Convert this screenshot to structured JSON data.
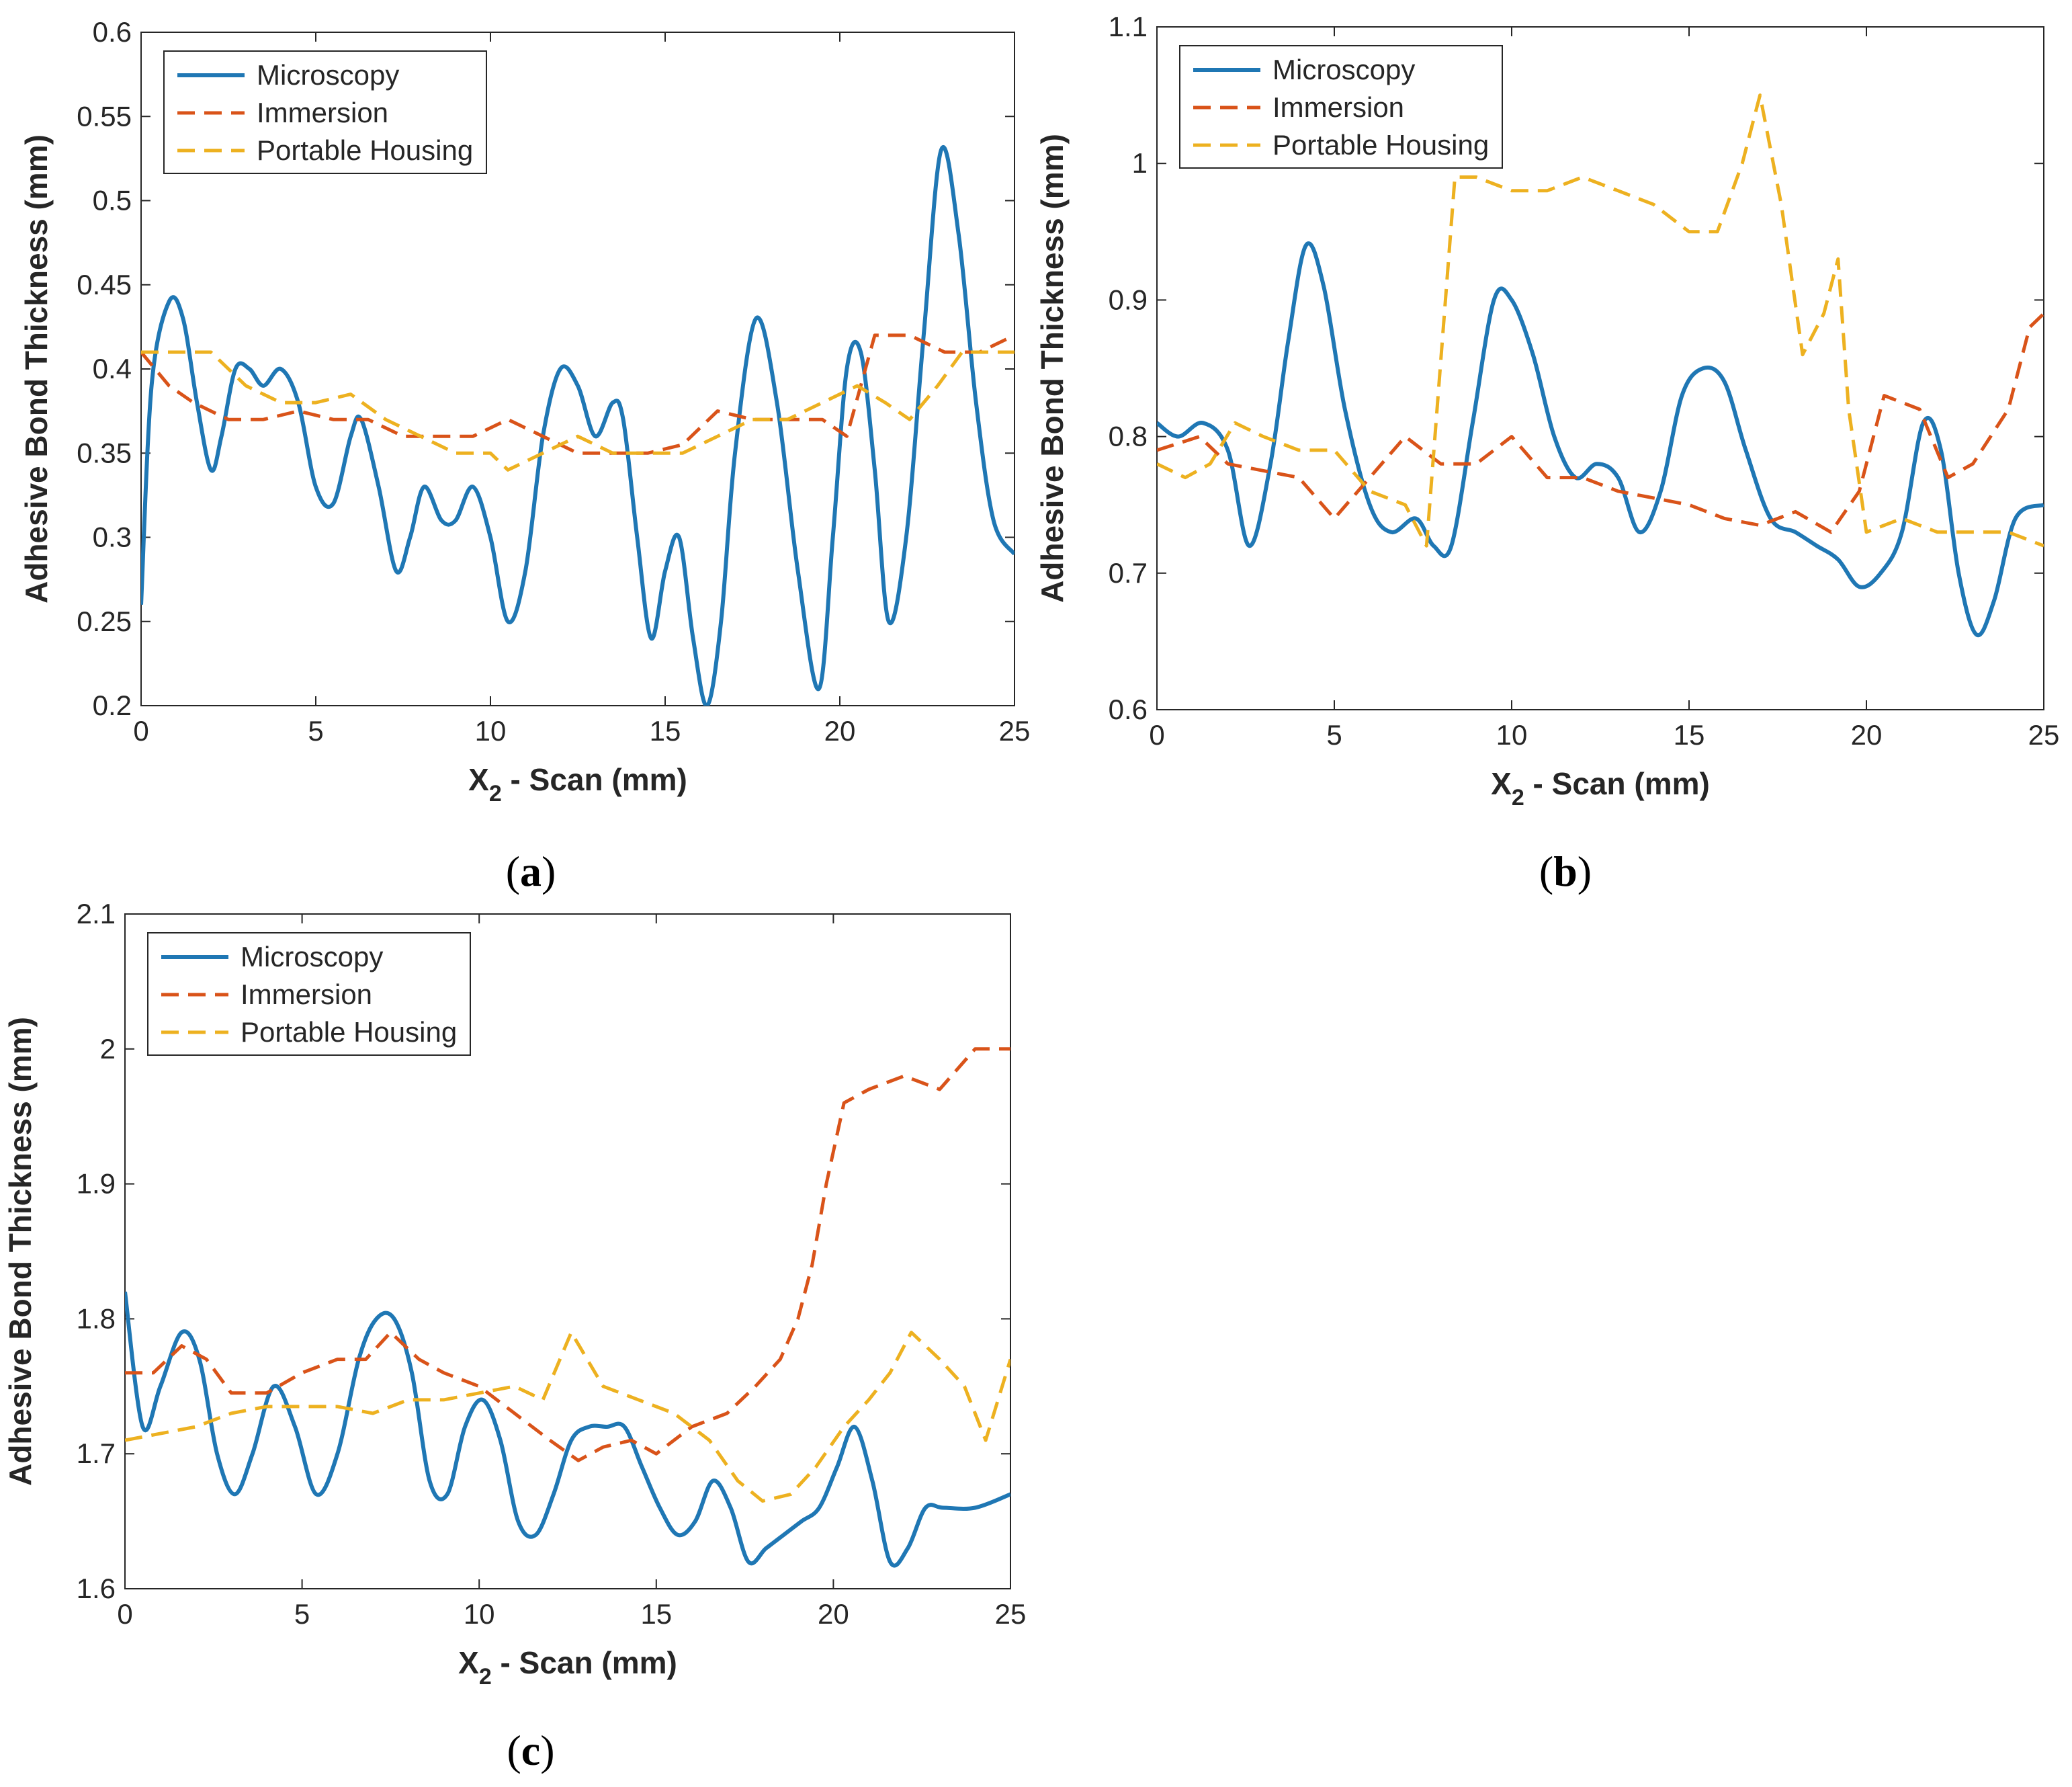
{
  "chart_data": [
    {
      "type": "line",
      "panel_label": "a",
      "xlabel": "X",
      "xlabel_sub": "2",
      "xlabel_rest": " - Scan (mm)",
      "ylabel": "Adhesive Bond Thickness (mm)",
      "xlim": [
        0,
        25
      ],
      "ylim": [
        0.2,
        0.6
      ],
      "xticks": [
        0,
        5,
        10,
        15,
        20,
        25
      ],
      "xtick_labels": [
        "0",
        "5",
        "10",
        "15",
        "20",
        "25"
      ],
      "yticks": [
        0.2,
        0.25,
        0.3,
        0.35,
        0.4,
        0.45,
        0.5,
        0.55,
        0.6
      ],
      "ytick_labels": [
        "0.2",
        "0.25",
        "0.3",
        "0.35",
        "0.4",
        "0.45",
        "0.5",
        "0.55",
        "0.6"
      ],
      "grid": false,
      "legend_position": "top-left",
      "series": [
        {
          "name": "Microscopy",
          "style": "solid",
          "color": "#1f77b4",
          "x": [
            0,
            0.3,
            0.8,
            1.2,
            1.6,
            2.0,
            2.3,
            2.7,
            3.1,
            3.5,
            4.0,
            4.5,
            5.0,
            5.5,
            6.0,
            6.3,
            6.8,
            7.3,
            7.7,
            8.1,
            8.6,
            9.0,
            9.5,
            10.0,
            10.5,
            11.0,
            11.5,
            12.0,
            12.5,
            13.0,
            13.5,
            13.8,
            14.2,
            14.6,
            15.0,
            15.4,
            15.8,
            16.2,
            16.6,
            17.0,
            17.6,
            18.2,
            18.8,
            19.4,
            19.8,
            20.2,
            20.6,
            21.0,
            21.4,
            21.9,
            22.4,
            22.9,
            23.4,
            23.9,
            24.4,
            25
          ],
          "values": [
            0.26,
            0.39,
            0.44,
            0.43,
            0.38,
            0.34,
            0.36,
            0.4,
            0.4,
            0.39,
            0.4,
            0.38,
            0.33,
            0.32,
            0.36,
            0.37,
            0.33,
            0.28,
            0.3,
            0.33,
            0.31,
            0.31,
            0.33,
            0.3,
            0.25,
            0.28,
            0.36,
            0.4,
            0.39,
            0.36,
            0.38,
            0.37,
            0.3,
            0.24,
            0.28,
            0.3,
            0.24,
            0.2,
            0.25,
            0.35,
            0.43,
            0.38,
            0.28,
            0.21,
            0.3,
            0.4,
            0.41,
            0.34,
            0.25,
            0.3,
            0.42,
            0.53,
            0.48,
            0.38,
            0.31,
            0.29
          ]
        },
        {
          "name": "Immersion",
          "style": "dashed",
          "color": "#d95319",
          "x": [
            0,
            0.8,
            1.5,
            2.5,
            3.5,
            4.5,
            5.5,
            6.5,
            7.5,
            8.5,
            9.5,
            10.5,
            11.5,
            12.5,
            13.5,
            14.5,
            15.5,
            16.5,
            17.5,
            18.5,
            19.5,
            20.2,
            21.0,
            22.0,
            23.0,
            24.0,
            25
          ],
          "values": [
            0.41,
            0.39,
            0.38,
            0.37,
            0.37,
            0.375,
            0.37,
            0.37,
            0.36,
            0.36,
            0.36,
            0.37,
            0.36,
            0.35,
            0.35,
            0.35,
            0.355,
            0.375,
            0.37,
            0.37,
            0.37,
            0.36,
            0.42,
            0.42,
            0.41,
            0.41,
            0.42
          ]
        },
        {
          "name": "Portable Housing",
          "style": "dashed",
          "color": "#edb120",
          "x": [
            0,
            1.0,
            2.0,
            3.0,
            4.0,
            5.0,
            6.0,
            7.0,
            8.0,
            9.0,
            10.0,
            10.5,
            11.5,
            12.5,
            13.5,
            14.5,
            15.5,
            16.5,
            17.5,
            18.5,
            19.5,
            20.5,
            21.3,
            22.0,
            22.8,
            23.5,
            24.2,
            25
          ],
          "values": [
            0.41,
            0.41,
            0.41,
            0.39,
            0.38,
            0.38,
            0.385,
            0.37,
            0.36,
            0.35,
            0.35,
            0.34,
            0.35,
            0.36,
            0.35,
            0.35,
            0.35,
            0.36,
            0.37,
            0.37,
            0.38,
            0.39,
            0.38,
            0.37,
            0.39,
            0.41,
            0.41,
            0.41
          ]
        }
      ]
    },
    {
      "type": "line",
      "panel_label": "b",
      "xlabel": "X",
      "xlabel_sub": "2",
      "xlabel_rest": " - Scan (mm)",
      "ylabel": "Adhesive Bond Thickness (mm)",
      "xlim": [
        0,
        25
      ],
      "ylim": [
        0.6,
        1.1
      ],
      "xticks": [
        0,
        5,
        10,
        15,
        20,
        25
      ],
      "xtick_labels": [
        "0",
        "5",
        "10",
        "15",
        "20",
        "25"
      ],
      "yticks": [
        0.6,
        0.7,
        0.8,
        0.9,
        1.0,
        1.1
      ],
      "ytick_labels": [
        "0.6",
        "0.7",
        "0.8",
        "0.9",
        "1",
        "1.1"
      ],
      "grid": false,
      "legend_position": "top-left",
      "series": [
        {
          "name": "Microscopy",
          "style": "solid",
          "color": "#1f77b4",
          "x": [
            0,
            0.6,
            1.3,
            2.0,
            2.6,
            3.2,
            3.7,
            4.2,
            4.7,
            5.3,
            6.0,
            6.6,
            7.3,
            7.8,
            8.3,
            8.9,
            9.5,
            10.0,
            10.6,
            11.2,
            11.8,
            12.4,
            13.0,
            13.6,
            14.2,
            14.8,
            15.4,
            16.0,
            16.6,
            17.3,
            18.0,
            18.6,
            19.2,
            19.8,
            20.4,
            21.0,
            21.6,
            22.1,
            22.6,
            23.1,
            23.6,
            24.2,
            25
          ],
          "values": [
            0.81,
            0.8,
            0.81,
            0.79,
            0.72,
            0.78,
            0.87,
            0.94,
            0.91,
            0.82,
            0.75,
            0.73,
            0.74,
            0.72,
            0.72,
            0.81,
            0.9,
            0.9,
            0.86,
            0.8,
            0.77,
            0.78,
            0.77,
            0.73,
            0.76,
            0.83,
            0.85,
            0.84,
            0.79,
            0.74,
            0.73,
            0.72,
            0.71,
            0.69,
            0.7,
            0.73,
            0.81,
            0.79,
            0.7,
            0.655,
            0.68,
            0.74,
            0.75
          ]
        },
        {
          "name": "Immersion",
          "style": "dashed",
          "color": "#d95319",
          "x": [
            0,
            1.2,
            2.0,
            3.0,
            4.0,
            5.0,
            6.0,
            7.0,
            8.0,
            9.0,
            10.0,
            11.0,
            12.0,
            13.0,
            14.0,
            15.0,
            16.0,
            17.0,
            18.0,
            19.0,
            19.8,
            20.5,
            21.5,
            22.3,
            23.0,
            24.0,
            24.6,
            25
          ],
          "values": [
            0.79,
            0.8,
            0.78,
            0.775,
            0.77,
            0.74,
            0.77,
            0.8,
            0.78,
            0.78,
            0.8,
            0.77,
            0.77,
            0.76,
            0.755,
            0.75,
            0.74,
            0.735,
            0.745,
            0.73,
            0.76,
            0.83,
            0.82,
            0.77,
            0.78,
            0.82,
            0.88,
            0.89
          ]
        },
        {
          "name": "Portable Housing",
          "style": "dashed",
          "color": "#edb120",
          "x": [
            0,
            0.8,
            1.5,
            2.2,
            3.0,
            4.0,
            5.0,
            6.0,
            7.0,
            7.6,
            8.4,
            9.0,
            10.0,
            11.0,
            12.0,
            13.0,
            14.0,
            15.0,
            15.8,
            16.5,
            17.0,
            17.6,
            18.2,
            18.8,
            19.2,
            19.5,
            20.0,
            21.0,
            22.0,
            23.0,
            24.0,
            25
          ],
          "values": [
            0.78,
            0.77,
            0.78,
            0.81,
            0.8,
            0.79,
            0.79,
            0.76,
            0.75,
            0.72,
            0.99,
            0.99,
            0.98,
            0.98,
            0.99,
            0.98,
            0.97,
            0.95,
            0.95,
            1.0,
            1.05,
            0.97,
            0.86,
            0.89,
            0.93,
            0.82,
            0.73,
            0.74,
            0.73,
            0.73,
            0.73,
            0.72
          ]
        }
      ]
    },
    {
      "type": "line",
      "panel_label": "c",
      "xlabel": "X",
      "xlabel_sub": "2",
      "xlabel_rest": " - Scan (mm)",
      "ylabel": "Adhesive Bond Thickness (mm)",
      "xlim": [
        0,
        25
      ],
      "ylim": [
        1.6,
        2.1
      ],
      "xticks": [
        0,
        5,
        10,
        15,
        20,
        25
      ],
      "xtick_labels": [
        "0",
        "5",
        "10",
        "15",
        "20",
        "25"
      ],
      "yticks": [
        1.6,
        1.7,
        1.8,
        1.9,
        2.0,
        2.1
      ],
      "ytick_labels": [
        "1.6",
        "1.7",
        "1.8",
        "1.9",
        "2",
        "2.1"
      ],
      "grid": false,
      "legend_position": "top-left",
      "series": [
        {
          "name": "Microscopy",
          "style": "solid",
          "color": "#1f77b4",
          "x": [
            0,
            0.5,
            1.0,
            1.6,
            2.1,
            2.6,
            3.1,
            3.6,
            4.2,
            4.8,
            5.4,
            6.0,
            6.6,
            7.1,
            7.6,
            8.1,
            8.6,
            9.1,
            9.6,
            10.1,
            10.6,
            11.1,
            11.6,
            12.1,
            12.6,
            13.1,
            13.6,
            14.1,
            14.6,
            15.1,
            15.6,
            16.1,
            16.6,
            17.1,
            17.6,
            18.1,
            18.6,
            19.1,
            19.6,
            20.1,
            20.6,
            21.1,
            21.6,
            22.1,
            22.6,
            23.1,
            24.0,
            25
          ],
          "values": [
            1.82,
            1.72,
            1.75,
            1.79,
            1.77,
            1.7,
            1.67,
            1.7,
            1.75,
            1.72,
            1.67,
            1.7,
            1.77,
            1.8,
            1.8,
            1.76,
            1.68,
            1.67,
            1.72,
            1.74,
            1.71,
            1.65,
            1.64,
            1.67,
            1.71,
            1.72,
            1.72,
            1.72,
            1.69,
            1.66,
            1.64,
            1.65,
            1.68,
            1.66,
            1.62,
            1.63,
            1.64,
            1.65,
            1.66,
            1.69,
            1.72,
            1.68,
            1.62,
            1.63,
            1.66,
            1.66,
            1.66,
            1.67
          ]
        },
        {
          "name": "Immersion",
          "style": "dashed",
          "color": "#d95319",
          "x": [
            0,
            0.8,
            1.6,
            2.3,
            3.0,
            4.0,
            5.0,
            6.0,
            6.8,
            7.5,
            8.3,
            9.0,
            10.0,
            11.0,
            12.0,
            12.8,
            13.5,
            14.3,
            15.0,
            16.0,
            17.0,
            17.8,
            18.5,
            19.0,
            19.4,
            19.8,
            20.3,
            21.0,
            22.0,
            23.0,
            24.0,
            25
          ],
          "values": [
            1.76,
            1.76,
            1.78,
            1.77,
            1.745,
            1.745,
            1.76,
            1.77,
            1.77,
            1.79,
            1.77,
            1.76,
            1.75,
            1.73,
            1.71,
            1.695,
            1.705,
            1.71,
            1.7,
            1.72,
            1.73,
            1.75,
            1.77,
            1.8,
            1.84,
            1.9,
            1.96,
            1.97,
            1.98,
            1.97,
            2.0,
            2.0
          ]
        },
        {
          "name": "Portable Housing",
          "style": "dashed",
          "color": "#edb120",
          "x": [
            0,
            1.0,
            2.0,
            3.0,
            4.0,
            5.0,
            6.0,
            7.0,
            8.0,
            9.0,
            10.0,
            11.0,
            11.8,
            12.6,
            13.5,
            14.5,
            15.5,
            16.5,
            17.3,
            18.0,
            18.8,
            19.5,
            20.3,
            21.0,
            21.6,
            22.2,
            23.0,
            23.7,
            24.3,
            25
          ],
          "values": [
            1.71,
            1.715,
            1.72,
            1.73,
            1.735,
            1.735,
            1.735,
            1.73,
            1.74,
            1.74,
            1.745,
            1.75,
            1.74,
            1.79,
            1.75,
            1.74,
            1.73,
            1.71,
            1.68,
            1.665,
            1.67,
            1.69,
            1.72,
            1.74,
            1.76,
            1.79,
            1.77,
            1.75,
            1.71,
            1.77
          ]
        }
      ]
    }
  ]
}
